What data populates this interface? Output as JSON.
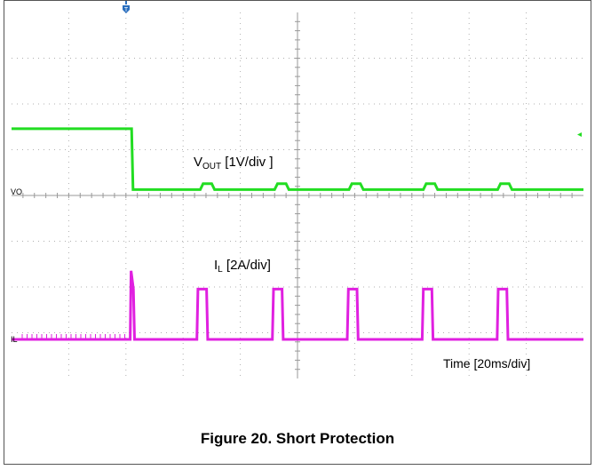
{
  "figure": {
    "caption": "Figure 20. Short Protection"
  },
  "colors": {
    "vout_trace": "#22dd22",
    "il_trace": "#e020e0",
    "grid": "#b0b0b0",
    "trigger_marker": "#2a6fbf"
  },
  "chart_data": {
    "type": "line",
    "title": "",
    "xlabel": "Time [20ms/div]",
    "x_unit": "ms",
    "x_range": [
      0,
      200
    ],
    "grid": true,
    "divisions": {
      "x": 10,
      "y": 8
    },
    "channel_markers": {
      "vout": "VO",
      "il": "IL"
    },
    "series": [
      {
        "name": "VOUT [1V/div ]",
        "name_base": "V",
        "name_sub": "OUT",
        "name_suffix": " [1V/div ]",
        "unit": "V",
        "scale_per_div": 1,
        "points": [
          [
            0,
            1.38
          ],
          [
            42,
            1.38
          ],
          [
            42.5,
            0.05
          ],
          [
            66,
            0.05
          ],
          [
            67,
            0.18
          ],
          [
            70,
            0.18
          ],
          [
            71,
            0.05
          ],
          [
            92,
            0.05
          ],
          [
            93,
            0.18
          ],
          [
            96,
            0.18
          ],
          [
            97,
            0.05
          ],
          [
            118,
            0.05
          ],
          [
            119,
            0.18
          ],
          [
            122,
            0.18
          ],
          [
            123,
            0.05
          ],
          [
            144,
            0.05
          ],
          [
            145,
            0.18
          ],
          [
            148,
            0.18
          ],
          [
            149,
            0.05
          ],
          [
            170,
            0.05
          ],
          [
            171,
            0.18
          ],
          [
            174,
            0.18
          ],
          [
            175,
            0.05
          ],
          [
            200,
            0.05
          ]
        ]
      },
      {
        "name": "IL [2A/div]",
        "name_base": "I",
        "name_sub": "L",
        "name_suffix": " [2A/div]",
        "unit": "A",
        "scale_per_div": 2,
        "points": [
          [
            0,
            0
          ],
          [
            41.5,
            0
          ],
          [
            41.8,
            3.0
          ],
          [
            42.6,
            2.2
          ],
          [
            43,
            0
          ],
          [
            64.8,
            0
          ],
          [
            65.2,
            2.2
          ],
          [
            68.2,
            2.2
          ],
          [
            68.6,
            0
          ],
          [
            91.2,
            0
          ],
          [
            91.6,
            2.2
          ],
          [
            94.6,
            2.2
          ],
          [
            95,
            0
          ],
          [
            117.4,
            0
          ],
          [
            117.8,
            2.2
          ],
          [
            120.8,
            2.2
          ],
          [
            121.2,
            0
          ],
          [
            143.6,
            0
          ],
          [
            144,
            2.2
          ],
          [
            147,
            2.2
          ],
          [
            147.4,
            0
          ],
          [
            169.8,
            0
          ],
          [
            170.2,
            2.2
          ],
          [
            173.2,
            2.2
          ],
          [
            173.6,
            0
          ],
          [
            200,
            0
          ]
        ]
      }
    ]
  }
}
